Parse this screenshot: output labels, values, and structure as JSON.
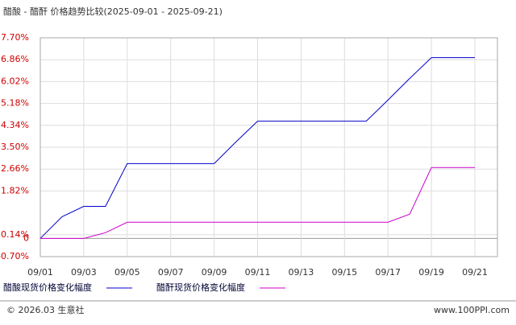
{
  "chart_data": {
    "type": "line",
    "title": "醋酸 - 醋酐 价格趋势比较(2025-09-01 - 2025-09-21)",
    "categories": [
      "09/01",
      null,
      "09/03",
      null,
      "09/05",
      null,
      "09/07",
      null,
      "09/09",
      null,
      "09/11",
      null,
      "09/13",
      null,
      "09/15",
      null,
      "09/17",
      null,
      "09/19",
      null,
      "09/21"
    ],
    "series": [
      {
        "name": "醋酸现货价格变化幅度",
        "color": "#0000cc",
        "values": [
          0,
          0.83,
          1.23,
          1.23,
          2.87,
          2.87,
          2.87,
          2.87,
          2.87,
          3.7,
          4.5,
          4.5,
          4.5,
          4.5,
          4.5,
          4.5,
          5.31,
          6.14,
          6.94,
          6.94,
          6.94
        ]
      },
      {
        "name": "醋酐现货价格变化幅度",
        "color": "#cc00cc",
        "values": [
          0,
          0,
          0,
          0.22,
          0.62,
          0.62,
          0.62,
          0.62,
          0.62,
          0.62,
          0.62,
          0.62,
          0.62,
          0.62,
          0.62,
          0.62,
          0.62,
          0.93,
          2.72,
          2.72,
          2.72
        ]
      }
    ],
    "ylim": [
      -0.7,
      7.7
    ],
    "yticks": [
      {
        "value": 7.7,
        "label": "7.70%"
      },
      {
        "value": 6.86,
        "label": "6.86%"
      },
      {
        "value": 6.02,
        "label": "6.02%"
      },
      {
        "value": 5.18,
        "label": "5.18%"
      },
      {
        "value": 4.34,
        "label": "4.34%"
      },
      {
        "value": 3.5,
        "label": "3.50%"
      },
      {
        "value": 2.66,
        "label": "2.66%"
      },
      {
        "value": 1.82,
        "label": "1.82%"
      },
      0,
      {
        "value": 0.14,
        "label": "0.14%"
      },
      {
        "value": -0.7,
        "label": "-0.70%"
      }
    ],
    "grid": true,
    "footer_left": "© 2026.03 生意社",
    "footer_right": "www.100PPI.com"
  }
}
